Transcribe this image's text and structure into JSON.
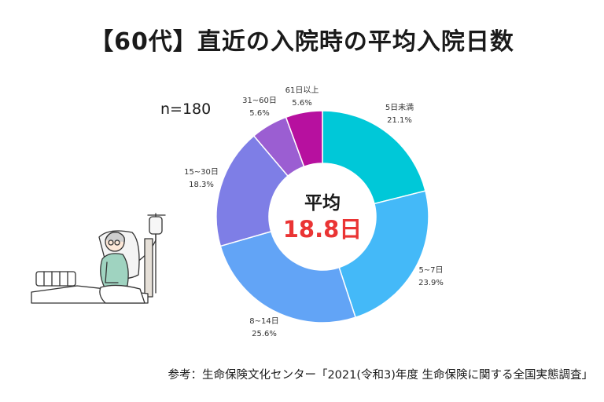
{
  "title": "【60代】直近の入院時の平均入院日数",
  "sample_size": "n=180",
  "center": {
    "label": "平均",
    "value": "18.8日"
  },
  "source": "参考：生命保険文化センター「2021(令和3)年度 生命保険に関する全国実態調査」",
  "illustration": "hospital-patient-in-bed-with-iv-drip",
  "chart_data": {
    "type": "pie",
    "style": "donut",
    "categories": [
      "5日未満",
      "5~7日",
      "8~14日",
      "15~30日",
      "31~60日",
      "61日以上"
    ],
    "values": [
      21.1,
      23.9,
      25.6,
      18.3,
      5.6,
      5.6
    ],
    "value_labels": [
      "21.1%",
      "23.9%",
      "25.6%",
      "18.3%",
      "5.6%",
      "5.6%"
    ],
    "colors": [
      "#00c8d8",
      "#44b9f8",
      "#62a4f6",
      "#7e7ee6",
      "#9b5ed2",
      "#b7109f"
    ],
    "start": "12 o'clock, clockwise"
  }
}
